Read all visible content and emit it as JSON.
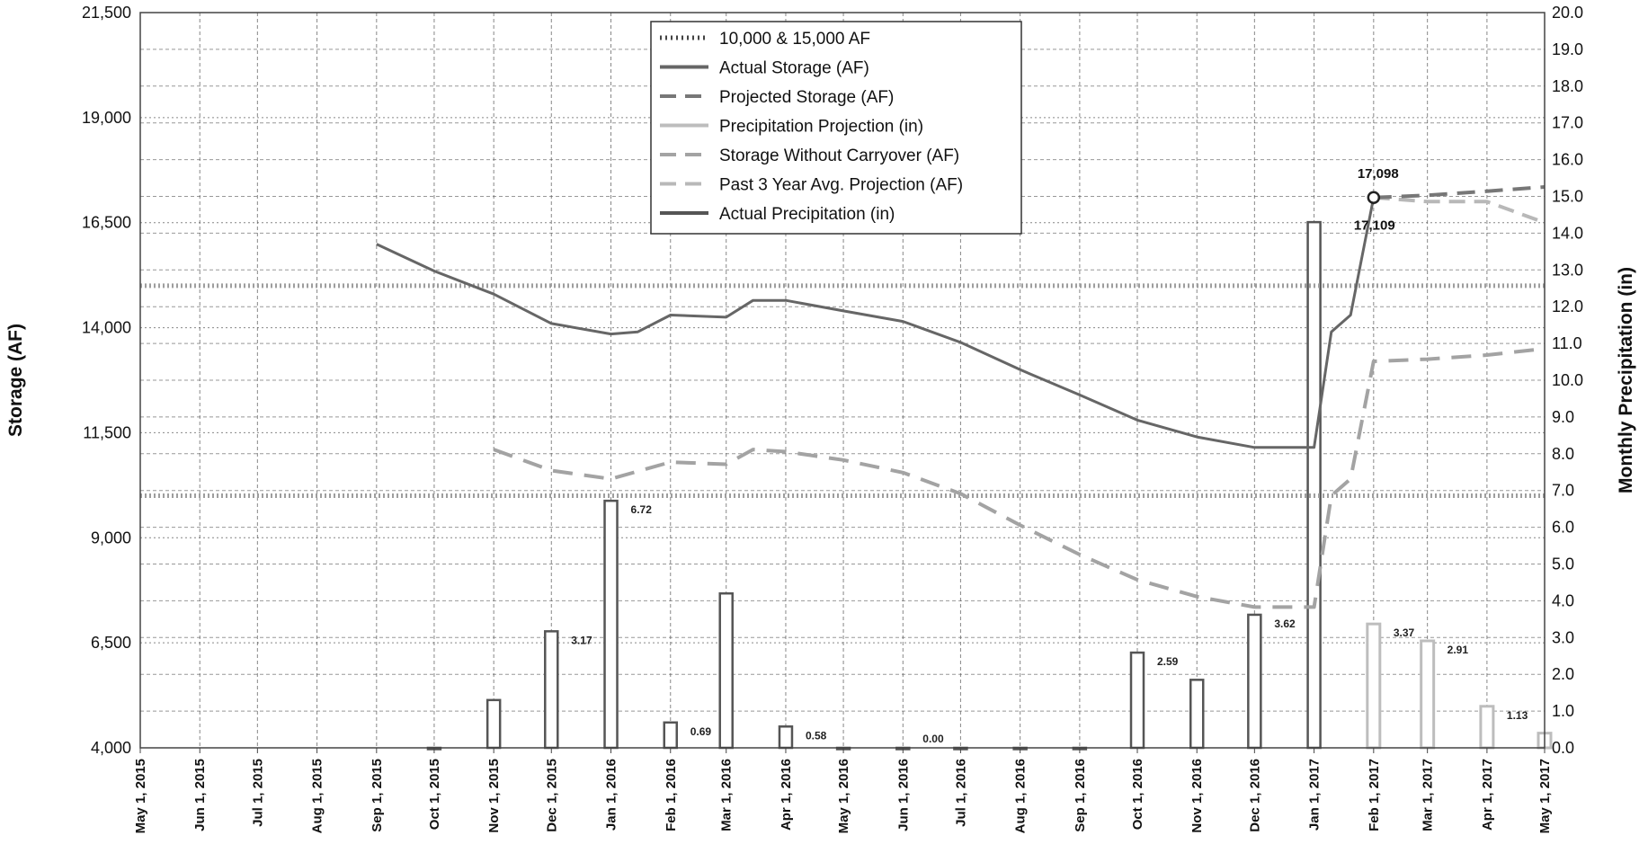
{
  "colors": {
    "actual_storage": "#666666",
    "projected_storage": "#777777",
    "precip_projection": "#bdbdbd",
    "storage_without_carryover": "#a3a3a3",
    "past_3yr": "#b8b8b8",
    "actual_precip": "#555555",
    "reference": "#9e9e9e",
    "grid": "#555555"
  },
  "chart_data": {
    "type": "line",
    "grid": true,
    "legend_placement": "top-center",
    "x_axis": {
      "ticks": [
        "May 1, 2015",
        "Jun 1, 2015",
        "Jul 1, 2015",
        "Aug 1, 2015",
        "Sep 1, 2015",
        "Oct 1, 2015",
        "Nov 1, 2015",
        "Dec 1, 2015",
        "Jan 1, 2016",
        "Feb 1, 2016",
        "Mar 1, 2016",
        "Apr 1, 2016",
        "May 1, 2016",
        "Jun 1, 2016",
        "Jul 1, 2016",
        "Aug 1, 2016",
        "Sep 1, 2016",
        "Oct 1, 2016",
        "Nov 1, 2016",
        "Dec 1, 2016",
        "Jan 1, 2017",
        "Feb 1, 2017",
        "Mar 1, 2017",
        "Apr 1, 2017",
        "May 1, 2017"
      ]
    },
    "y_left": {
      "label": "Storage (AF)",
      "range": [
        4000,
        21500
      ],
      "ticks": [
        "4,000",
        "6,500",
        "9,000",
        "11,500",
        "14,000",
        "16,500",
        "19,000",
        "21,500"
      ]
    },
    "y_right": {
      "label": "Monthly Precipitation (in)",
      "range": [
        0,
        20
      ],
      "ticks": [
        "0.0",
        "1.0",
        "2.0",
        "3.0",
        "4.0",
        "5.0",
        "6.0",
        "7.0",
        "8.0",
        "9.0",
        "10.0",
        "11.0",
        "12.0",
        "13.0",
        "14.0",
        "15.0",
        "16.0",
        "17.0",
        "18.0",
        "19.0",
        "20.0"
      ]
    },
    "reference_lines": {
      "name": "10,000 & 15,000 AF",
      "values": [
        10000,
        15000
      ]
    },
    "series": [
      {
        "name": "Actual Storage (AF)",
        "axis": "left",
        "style": "solid",
        "points": [
          [
            "Sep 1, 2015",
            15990
          ],
          [
            "Oct 1, 2015",
            15350
          ],
          [
            "Nov 1, 2015",
            14800
          ],
          [
            "Dec 1, 2015",
            14100
          ],
          [
            "Jan 1, 2016",
            13850
          ],
          [
            "Jan 15, 2016",
            13900
          ],
          [
            "Feb 1, 2016",
            14300
          ],
          [
            "Mar 1, 2016",
            14250
          ],
          [
            "Mar 15, 2016",
            14650
          ],
          [
            "Apr 1, 2016",
            14650
          ],
          [
            "May 1, 2016",
            14400
          ],
          [
            "Jun 1, 2016",
            14150
          ],
          [
            "Jul 1, 2016",
            13650
          ],
          [
            "Aug 1, 2016",
            13000
          ],
          [
            "Sep 1, 2016",
            12400
          ],
          [
            "Oct 1, 2016",
            11800
          ],
          [
            "Nov 1, 2016",
            11400
          ],
          [
            "Dec 1, 2016",
            11150
          ],
          [
            "Jan 1, 2017",
            11150
          ],
          [
            "Jan 10, 2017",
            13900
          ],
          [
            "Jan 20, 2017",
            14300
          ],
          [
            "Feb 1, 2017",
            17098
          ]
        ]
      },
      {
        "name": "Projected Storage (AF)",
        "axis": "left",
        "style": "dashed",
        "points": [
          [
            "Feb 1, 2017",
            17098
          ],
          [
            "Mar 1, 2017",
            17150
          ],
          [
            "Apr 1, 2017",
            17250
          ],
          [
            "May 1, 2017",
            17350
          ]
        ]
      },
      {
        "name": "Precipitation Projection (in)",
        "axis": "right",
        "style": "bar",
        "points": [
          [
            "Feb 1, 2017",
            3.37
          ],
          [
            "Mar 1, 2017",
            2.91
          ],
          [
            "Apr 1, 2017",
            1.13
          ],
          [
            "May 1, 2017",
            0.4
          ]
        ]
      },
      {
        "name": "Storage Without Carryover (AF)",
        "axis": "left",
        "style": "dashed",
        "points": [
          [
            "Nov 1, 2015",
            11100
          ],
          [
            "Dec 1, 2015",
            10600
          ],
          [
            "Jan 1, 2016",
            10400
          ],
          [
            "Feb 1, 2016",
            10800
          ],
          [
            "Mar 1, 2016",
            10750
          ],
          [
            "Mar 15, 2016",
            11100
          ],
          [
            "Apr 1, 2016",
            11050
          ],
          [
            "May 1, 2016",
            10850
          ],
          [
            "Jun 1, 2016",
            10550
          ],
          [
            "Jul 1, 2016",
            10050
          ],
          [
            "Aug 1, 2016",
            9300
          ],
          [
            "Sep 1, 2016",
            8600
          ],
          [
            "Oct 1, 2016",
            8000
          ],
          [
            "Nov 1, 2016",
            7600
          ],
          [
            "Dec 1, 2016",
            7350
          ],
          [
            "Jan 1, 2017",
            7350
          ],
          [
            "Jan 10, 2017",
            10000
          ],
          [
            "Jan 20, 2017",
            10400
          ],
          [
            "Feb 1, 2017",
            13200
          ],
          [
            "Mar 1, 2017",
            13250
          ],
          [
            "Apr 1, 2017",
            13350
          ],
          [
            "May 1, 2017",
            13500
          ]
        ]
      },
      {
        "name": "Past 3 Year Avg. Projection (AF)",
        "axis": "left",
        "style": "dashed",
        "points": [
          [
            "Feb 1, 2017",
            17098
          ],
          [
            "Mar 1, 2017",
            17000
          ],
          [
            "Apr 1, 2017",
            17000
          ],
          [
            "May 1, 2017",
            16500
          ]
        ]
      },
      {
        "name": "Actual Precipitation (in)",
        "axis": "right",
        "style": "bar",
        "points": [
          [
            "Oct 1, 2015",
            0.0
          ],
          [
            "Nov 1, 2015",
            1.3
          ],
          [
            "Dec 1, 2015",
            3.17
          ],
          [
            "Jan 1, 2016",
            6.72
          ],
          [
            "Feb 1, 2016",
            0.69
          ],
          [
            "Mar 1, 2016",
            4.2
          ],
          [
            "Apr 1, 2016",
            0.58
          ],
          [
            "May 1, 2016",
            0.0
          ],
          [
            "Jun 1, 2016",
            0.0
          ],
          [
            "Jul 1, 2016",
            0.0
          ],
          [
            "Aug 1, 2016",
            0.0
          ],
          [
            "Sep 1, 2016",
            0.0
          ],
          [
            "Oct 1, 2016",
            2.59
          ],
          [
            "Nov 1, 2016",
            1.85
          ],
          [
            "Dec 1, 2016",
            3.62
          ],
          [
            "Jan 1, 2017",
            14.3
          ]
        ]
      }
    ],
    "data_labels": [
      {
        "x": "Dec 1, 2015",
        "text": "3.17"
      },
      {
        "x": "Jan 1, 2016",
        "text": "6.72"
      },
      {
        "x": "Feb 1, 2016",
        "text": "0.69"
      },
      {
        "x": "Apr 1, 2016",
        "text": "0.58"
      },
      {
        "x": "Jun 1, 2016",
        "text": "0.00"
      },
      {
        "x": "Oct 1, 2016",
        "text": "2.59"
      },
      {
        "x": "Dec 1, 2016",
        "text": "3.62"
      },
      {
        "x": "Feb 1, 2017",
        "text": "3.37"
      },
      {
        "x": "Mar 1, 2017",
        "text": "2.91"
      },
      {
        "x": "Apr 1, 2017",
        "text": "1.13"
      }
    ],
    "annotations": [
      {
        "x": "Feb 1, 2017",
        "y": 17098,
        "text": "17,098"
      },
      {
        "x": "Feb 1, 2017",
        "y": 16500,
        "text": "17,109"
      }
    ]
  }
}
